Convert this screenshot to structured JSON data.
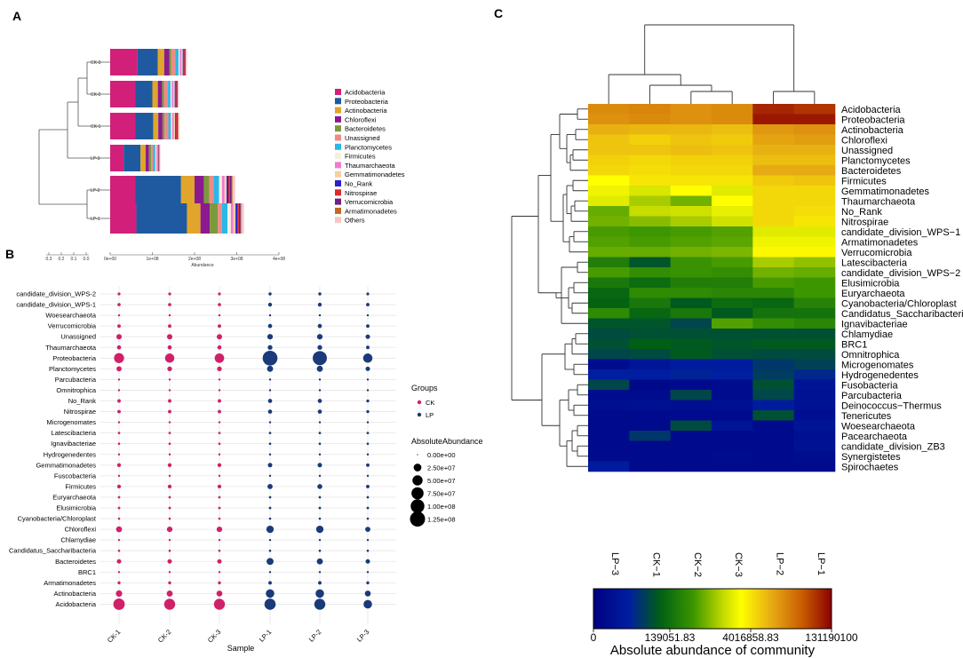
{
  "colors": {
    "Acidobacteria": "#d21f7a",
    "Proteobacteria": "#1f5aa0",
    "Actinobacteria": "#e0a52a",
    "Chloroflexi": "#8b1a8f",
    "Bacteroidetes": "#7a9a3c",
    "Unassigned": "#f08a8a",
    "Planctomycetes": "#2ab8e8",
    "Firmicutes": "#f5f0dc",
    "Thaumarchaeota": "#f07ad2",
    "Gemmatimonadetes": "#f5d0a0",
    "No_Rank": "#2a20d0",
    "Nitrospirae": "#e02a2a",
    "Verrucomicrobia": "#702080",
    "Armatimonadetes": "#c06a20",
    "Others": "#f5c8c8",
    "CK": "#d0206a",
    "LP": "#1a3a7a"
  },
  "panel_labels": {
    "a": "A",
    "b": "B",
    "c": "C"
  },
  "chart_data": [
    {
      "type": "bar",
      "orientation": "horizontal-stacked",
      "panel": "A",
      "samples": [
        "CK-3",
        "CK-2",
        "CK-1",
        "LP-3",
        "LP-2",
        "LP-1"
      ],
      "legend": [
        "Acidobacteria",
        "Proteobacteria",
        "Actinobacteria",
        "Chloroflexi",
        "Bacteroidetes",
        "Unassigned",
        "Planctomycetes",
        "Firmicutes",
        "Thaumarchaeota",
        "Gemmatimonadetes",
        "No_Rank",
        "Nitrospirae",
        "Verrucomicrobia",
        "Armatimonadetes",
        "Others"
      ],
      "series_values": {
        "CK-3": [
          65000000.0,
          48000000.0,
          15000000.0,
          12000000.0,
          5000000.0,
          9000000.0,
          8000000.0,
          3000000.0,
          4000000.0,
          3000000.0,
          2000000.0,
          2000000.0,
          2000000.0,
          1000000.0,
          3000000.0
        ],
        "CK-2": [
          60000000.0,
          40000000.0,
          13000000.0,
          10000000.0,
          5000000.0,
          9000000.0,
          6000000.0,
          3000000.0,
          4000000.0,
          3000000.0,
          2000000.0,
          2000000.0,
          2000000.0,
          1000000.0,
          3000000.0
        ],
        "CK-1": [
          60000000.0,
          42000000.0,
          12000000.0,
          10000000.0,
          5000000.0,
          9000000.0,
          6000000.0,
          3000000.0,
          4000000.0,
          3000000.0,
          2000000.0,
          2000000.0,
          2000000.0,
          1000000.0,
          3000000.0
        ],
        "LP-3": [
          32000000.0,
          40000000.0,
          12000000.0,
          8000000.0,
          5000000.0,
          5000000.0,
          5000000.0,
          2000000.0,
          2000000.0,
          2000000.0,
          1000000.0,
          1000000.0,
          1000000.0,
          1000000.0,
          2000000.0
        ],
        "LP-2": [
          60000000.0,
          108000000.0,
          32000000.0,
          22000000.0,
          13000000.0,
          10000000.0,
          13000000.0,
          7000000.0,
          6000000.0,
          5000000.0,
          4000000.0,
          4000000.0,
          4000000.0,
          2000000.0,
          6000000.0
        ],
        "LP-1": [
          62000000.0,
          120000000.0,
          32000000.0,
          22000000.0,
          19000000.0,
          10000000.0,
          13000000.0,
          8000000.0,
          6000000.0,
          5000000.0,
          4000000.0,
          4000000.0,
          4000000.0,
          2000000.0,
          6000000.0
        ]
      },
      "xaxis_ticks": [
        "0e+00",
        "1e+08",
        "2e+08",
        "3e+08",
        "4e+08"
      ],
      "xaxis_tick_values": [
        0,
        100000000.0,
        200000000.0,
        300000000.0,
        400000000.0
      ],
      "xlim": [
        0,
        400000000.0
      ],
      "xlabel": "Abundance",
      "dendro_axis_ticks": [
        "0.3",
        "0.2",
        "0.1",
        "0.0"
      ]
    },
    {
      "type": "scatter",
      "subtype": "bubble",
      "panel": "B",
      "x_categories": [
        "CK-1",
        "CK-2",
        "CK-3",
        "LP-1",
        "LP-2",
        "LP-3"
      ],
      "x_groups": [
        "CK",
        "CK",
        "CK",
        "LP",
        "LP",
        "LP"
      ],
      "y_categories": [
        "candidate_division_WPS-2",
        "candidate_division_WPS-1",
        "Woesearchaeota",
        "Verrucomicrobia",
        "Unassigned",
        "Thaumarchaeota",
        "Proteobacteria",
        "Planctomycetes",
        "Parcubacteria",
        "Omnitrophica",
        "No_Rank",
        "Nitrospirae",
        "Microgenomates",
        "Latescibacteria",
        "Ignavibacteriae",
        "Hydrogenedentes",
        "Gemmatimonadetes",
        "Fuscobacteria",
        "Firmicutes",
        "Euryarchaeota",
        "Elusimicrobia",
        "Cyanobacteria/Chloroplast",
        "Chloroflexi",
        "Chlamydiae",
        "Candidatus_Saccharibacteria",
        "Bacteroidetes",
        "BRC1",
        "Armatimonadetes",
        "Actinobacteria",
        "Acidobacteria"
      ],
      "size_values": [
        [
          800000.0,
          800000.0,
          800000.0,
          1200000.0,
          1200000.0,
          800000.0
        ],
        [
          1500000.0,
          1500000.0,
          1500000.0,
          3000000.0,
          3000000.0,
          2000000.0
        ],
        [
          100000.0,
          100000.0,
          100000.0,
          100000.0,
          100000.0,
          100000.0
        ],
        [
          2000000.0,
          2000000.0,
          2000000.0,
          4000000.0,
          4000000.0,
          2000000.0
        ],
        [
          9000000.0,
          9000000.0,
          9000000.0,
          10000000.0,
          10000000.0,
          5000000.0
        ],
        [
          4000000.0,
          4000000.0,
          4000000.0,
          6000000.0,
          6000000.0,
          2000000.0
        ],
        [
          48000000.0,
          40000000.0,
          42000000.0,
          120000000.0,
          108000000.0,
          40000000.0
        ],
        [
          8000000.0,
          6000000.0,
          6000000.0,
          13000000.0,
          13000000.0,
          5000000.0
        ],
        [
          100000.0,
          100000.0,
          100000.0,
          100000.0,
          100000.0,
          100000.0
        ],
        [
          100000.0,
          100000.0,
          100000.0,
          100000.0,
          100000.0,
          100000.0
        ],
        [
          2000000.0,
          2000000.0,
          2000000.0,
          4000000.0,
          4000000.0,
          1000000.0
        ],
        [
          2000000.0,
          2000000.0,
          2000000.0,
          4000000.0,
          4000000.0,
          1000000.0
        ],
        [
          100000.0,
          100000.0,
          100000.0,
          100000.0,
          100000.0,
          100000.0
        ],
        [
          300000.0,
          300000.0,
          300000.0,
          300000.0,
          300000.0,
          300000.0
        ],
        [
          200000.0,
          200000.0,
          200000.0,
          200000.0,
          200000.0,
          200000.0
        ],
        [
          100000.0,
          100000.0,
          100000.0,
          100000.0,
          100000.0,
          100000.0
        ],
        [
          3000000.0,
          3000000.0,
          3000000.0,
          5000000.0,
          5000000.0,
          2000000.0
        ],
        [
          100000.0,
          100000.0,
          100000.0,
          100000.0,
          100000.0,
          100000.0
        ],
        [
          3000000.0,
          3000000.0,
          3000000.0,
          8000000.0,
          7000000.0,
          2000000.0
        ],
        [
          300000.0,
          300000.0,
          300000.0,
          300000.0,
          300000.0,
          300000.0
        ],
        [
          400000.0,
          400000.0,
          400000.0,
          400000.0,
          400000.0,
          400000.0
        ],
        [
          200000.0,
          200000.0,
          200000.0,
          200000.0,
          200000.0,
          200000.0
        ],
        [
          12000000.0,
          10000000.0,
          10000000.0,
          22000000.0,
          22000000.0,
          8000000.0
        ],
        [
          100000.0,
          100000.0,
          100000.0,
          100000.0,
          100000.0,
          100000.0
        ],
        [
          200000.0,
          200000.0,
          200000.0,
          200000.0,
          200000.0,
          200000.0
        ],
        [
          5000000.0,
          5000000.0,
          5000000.0,
          19000000.0,
          13000000.0,
          5000000.0
        ],
        [
          100000.0,
          100000.0,
          100000.0,
          100000.0,
          100000.0,
          100000.0
        ],
        [
          1000000.0,
          1000000.0,
          1000000.0,
          2000000.0,
          2000000.0,
          1000000.0
        ],
        [
          15000000.0,
          13000000.0,
          12000000.0,
          32000000.0,
          32000000.0,
          12000000.0
        ],
        [
          65000000.0,
          60000000.0,
          60000000.0,
          62000000.0,
          60000000.0,
          32000000.0
        ]
      ],
      "xlabel": "Sample",
      "legend_groups_title": "Groups",
      "legend_groups": [
        "CK",
        "LP"
      ],
      "legend_size_title": "AbsoluteAbundance",
      "legend_size_labels": [
        "0.00e+00",
        "2.50e+07",
        "5.00e+07",
        "7.50e+07",
        "1.00e+08",
        "1.25e+08"
      ],
      "legend_size_values": [
        0,
        25000000.0,
        50000000.0,
        75000000.0,
        100000000.0,
        125000000.0
      ]
    },
    {
      "type": "heatmap",
      "panel": "C",
      "columns": [
        "LP-3",
        "CK-1",
        "CK-2",
        "CK-3",
        "LP-2",
        "LP-1"
      ],
      "rows": [
        "Acidobacteria",
        "Proteobacteria",
        "Actinobacteria",
        "Chloroflexi",
        "Unassigned",
        "Planctomycetes",
        "Bacteroidetes",
        "Firmicutes",
        "Gemmatimonadetes",
        "Thaumarchaeota",
        "No_Rank",
        "Nitrospirae",
        "candidate_division_WPS-1",
        "Armatimonadetes",
        "Verrucomicrobia",
        "Latescibacteria",
        "candidate_division_WPS-2",
        "Elusimicrobia",
        "Euryarchaeota",
        "Cyanobacteria/Chloroplast",
        "Candidatus_Saccharibacteria",
        "Ignavibacteriae",
        "Chlamydiae",
        "BRC1",
        "Omnitrophica",
        "Microgenomates",
        "Hydrogenedentes",
        "Fusobacteria",
        "Parcubacteria",
        "Deinococcus-Thermus",
        "Tenericutes",
        "Woesearchaeota",
        "Pacearchaeota",
        "candidate_division_ZB3",
        "Synergistetes",
        "Spirochaetes"
      ],
      "values": [
        [
          0.8,
          0.81,
          0.79,
          0.8,
          0.95,
          0.93
        ],
        [
          0.79,
          0.8,
          0.79,
          0.8,
          0.97,
          0.97
        ],
        [
          0.74,
          0.73,
          0.73,
          0.72,
          0.78,
          0.79
        ],
        [
          0.71,
          0.69,
          0.71,
          0.7,
          0.76,
          0.77
        ],
        [
          0.71,
          0.71,
          0.72,
          0.71,
          0.74,
          0.74
        ],
        [
          0.69,
          0.68,
          0.69,
          0.69,
          0.72,
          0.72
        ],
        [
          0.68,
          0.67,
          0.68,
          0.68,
          0.75,
          0.75
        ],
        [
          0.62,
          0.66,
          0.66,
          0.66,
          0.7,
          0.71
        ],
        [
          0.6,
          0.57,
          0.62,
          0.58,
          0.68,
          0.68
        ],
        [
          0.58,
          0.52,
          0.47,
          0.62,
          0.68,
          0.68
        ],
        [
          0.46,
          0.55,
          0.56,
          0.59,
          0.68,
          0.67
        ],
        [
          0.47,
          0.49,
          0.52,
          0.56,
          0.68,
          0.66
        ],
        [
          0.43,
          0.42,
          0.43,
          0.44,
          0.58,
          0.58
        ],
        [
          0.44,
          0.43,
          0.44,
          0.45,
          0.6,
          0.6
        ],
        [
          0.46,
          0.46,
          0.47,
          0.48,
          0.63,
          0.63
        ],
        [
          0.36,
          0.26,
          0.41,
          0.43,
          0.52,
          0.5
        ],
        [
          0.43,
          0.4,
          0.41,
          0.4,
          0.47,
          0.46
        ],
        [
          0.34,
          0.31,
          0.36,
          0.36,
          0.43,
          0.42
        ],
        [
          0.3,
          0.39,
          0.39,
          0.38,
          0.38,
          0.42
        ],
        [
          0.29,
          0.34,
          0.27,
          0.31,
          0.3,
          0.37
        ],
        [
          0.39,
          0.3,
          0.34,
          0.27,
          0.33,
          0.33
        ],
        [
          0.26,
          0.26,
          0.23,
          0.44,
          0.4,
          0.38
        ],
        [
          0.24,
          0.25,
          0.25,
          0.25,
          0.25,
          0.25
        ],
        [
          0.25,
          0.28,
          0.27,
          0.26,
          0.27,
          0.27
        ],
        [
          0.23,
          0.24,
          0.27,
          0.25,
          0.24,
          0.24
        ],
        [
          0.06,
          0.11,
          0.14,
          0.14,
          0.2,
          0.22
        ],
        [
          0.15,
          0.15,
          0.16,
          0.15,
          0.21,
          0.17
        ],
        [
          0.23,
          0.04,
          0.05,
          0.06,
          0.25,
          0.1
        ],
        [
          0.06,
          0.06,
          0.23,
          0.06,
          0.23,
          0.09
        ],
        [
          0.07,
          0.08,
          0.07,
          0.08,
          0.14,
          0.09
        ],
        [
          0.05,
          0.05,
          0.05,
          0.05,
          0.25,
          0.07
        ],
        [
          0.05,
          0.05,
          0.24,
          0.1,
          0.05,
          0.1
        ],
        [
          0.05,
          0.2,
          0.05,
          0.05,
          0.05,
          0.08
        ],
        [
          0.05,
          0.05,
          0.05,
          0.05,
          0.05,
          0.09
        ],
        [
          0.05,
          0.05,
          0.05,
          0.06,
          0.05,
          0.06
        ],
        [
          0.14,
          0.05,
          0.05,
          0.05,
          0.05,
          0.05
        ]
      ],
      "colorbar_ticks": [
        "0",
        "139051.83",
        "4016858.83",
        "131190100"
      ],
      "colorbar_title": "Absolute abundance of community"
    }
  ]
}
